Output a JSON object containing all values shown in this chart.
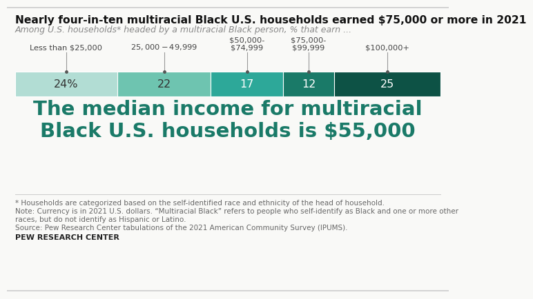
{
  "title": "Nearly four-in-ten multiracial Black U.S. households earned $75,000 or more in 2021",
  "subtitle": "Among U.S. households* headed by a multiracial Black person, % that earn ...",
  "categories": [
    "Less than $25,000",
    "$25,000-$49,999",
    "$50,000-\n$74,999",
    "$75,000-\n$99,999",
    "$100,000+"
  ],
  "values": [
    24,
    22,
    17,
    12,
    25
  ],
  "labels": [
    "24%",
    "22",
    "17",
    "12",
    "25"
  ],
  "colors": [
    "#b2ddd4",
    "#6ec4b0",
    "#2da899",
    "#1a7a68",
    "#0d5245"
  ],
  "label_colors": [
    "#333333",
    "#333333",
    "#ffffff",
    "#ffffff",
    "#ffffff"
  ],
  "big_text_line1": "The median income for multiracial",
  "big_text_line2": "Black U.S. households is $55,000",
  "big_text_color": "#1a7a68",
  "footnote1": "* Households are categorized based on the self-identified race and ethnicity of the head of household.",
  "footnote2": "Note: Currency is in 2021 U.S. dollars. “Multiracial Black” refers to people who self-identify as Black and one or more other",
  "footnote3": "races, but do not identify as Hispanic or Latino.",
  "footnote4": "Source: Pew Research Center tabulations of the 2021 American Community Survey (IPUMS).",
  "source_label": "PEW RESEARCH CENTER",
  "background_color": "#f9f9f7",
  "top_border_color": "#cccccc",
  "bottom_border_color": "#cccccc"
}
